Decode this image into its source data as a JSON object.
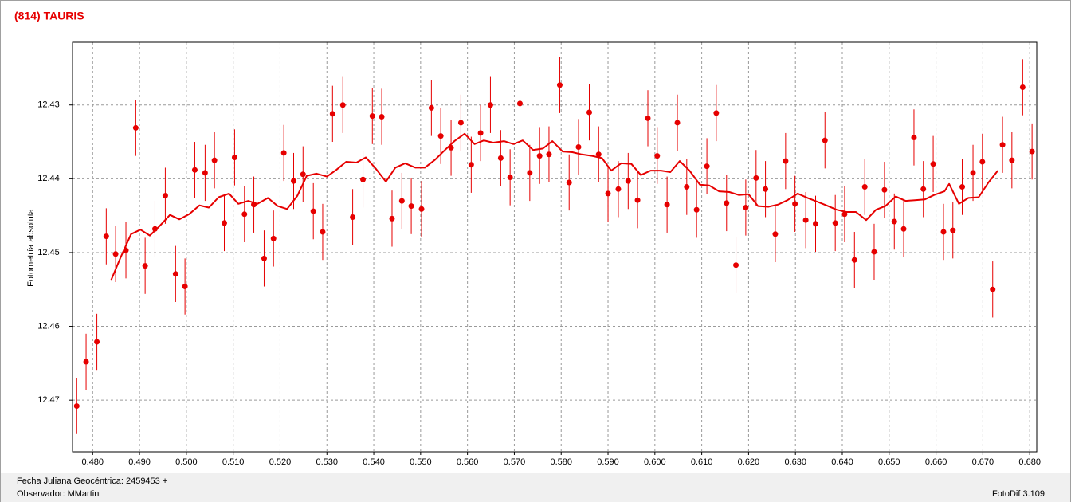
{
  "chart_data": {
    "type": "scatter",
    "title": "(814) TAURIS",
    "y_label": "Fotometría absoluta",
    "xlim": [
      0.4757,
      0.6815
    ],
    "ylim": [
      12.4215,
      12.477
    ],
    "y_inverted": true,
    "grid": true,
    "xticks": [
      {
        "value": 0.48,
        "label": "0.480"
      },
      {
        "value": 0.49,
        "label": "0.490"
      },
      {
        "value": 0.5,
        "label": "0.500"
      },
      {
        "value": 0.51,
        "label": "0.510"
      },
      {
        "value": 0.52,
        "label": "0.520"
      },
      {
        "value": 0.53,
        "label": "0.530"
      },
      {
        "value": 0.54,
        "label": "0.540"
      },
      {
        "value": 0.55,
        "label": "0.550"
      },
      {
        "value": 0.56,
        "label": "0.560"
      },
      {
        "value": 0.57,
        "label": "0.570"
      },
      {
        "value": 0.58,
        "label": "0.580"
      },
      {
        "value": 0.59,
        "label": "0.590"
      },
      {
        "value": 0.6,
        "label": "0.600"
      },
      {
        "value": 0.61,
        "label": "0.610"
      },
      {
        "value": 0.62,
        "label": "0.620"
      },
      {
        "value": 0.63,
        "label": "0.630"
      },
      {
        "value": 0.64,
        "label": "0.640"
      },
      {
        "value": 0.65,
        "label": "0.650"
      },
      {
        "value": 0.66,
        "label": "0.660"
      },
      {
        "value": 0.67,
        "label": "0.670"
      },
      {
        "value": 0.68,
        "label": "0.680"
      }
    ],
    "yticks": [
      12.43,
      12.44,
      12.45,
      12.46,
      12.47
    ],
    "series": [
      {
        "type": "errorbar",
        "color": "#e60000",
        "error": 0.0038,
        "x": [
          0.4766,
          0.4786,
          0.4809,
          0.4829,
          0.4849,
          0.4871,
          0.4892,
          0.4912,
          0.4933,
          0.4955,
          0.4977,
          0.4997,
          0.5018,
          0.504,
          0.506,
          0.5081,
          0.5103,
          0.5124,
          0.5144,
          0.5166,
          0.5186,
          0.5208,
          0.5229,
          0.5249,
          0.5271,
          0.5291,
          0.5312,
          0.5334,
          0.5355,
          0.5377,
          0.5397,
          0.5417,
          0.5439,
          0.546,
          0.548,
          0.5502,
          0.5523,
          0.5543,
          0.5565,
          0.5586,
          0.5608,
          0.5628,
          0.5649,
          0.5671,
          0.5691,
          0.5712,
          0.5733,
          0.5754,
          0.5774,
          0.5797,
          0.5817,
          0.5837,
          0.586,
          0.588,
          0.59,
          0.5922,
          0.5943,
          0.5963,
          0.5985,
          0.6005,
          0.6026,
          0.6048,
          0.6068,
          0.6089,
          0.6111,
          0.6131,
          0.6153,
          0.6173,
          0.6194,
          0.6216,
          0.6236,
          0.6257,
          0.6279,
          0.6299,
          0.6322,
          0.6343,
          0.6363,
          0.6385,
          0.6405,
          0.6426,
          0.6448,
          0.6468,
          0.649,
          0.6511,
          0.6531,
          0.6553,
          0.6573,
          0.6594,
          0.6616,
          0.6636,
          0.6656,
          0.6679,
          0.6699,
          0.6721,
          0.6742,
          0.6762,
          0.6785,
          0.6805
        ],
        "values": [
          12.4708,
          12.4648,
          12.4621,
          12.4478,
          12.4502,
          12.4497,
          12.4331,
          12.4518,
          12.4468,
          12.4423,
          12.4529,
          12.4546,
          12.4388,
          12.4392,
          12.4375,
          12.446,
          12.4371,
          12.4448,
          12.4435,
          12.4508,
          12.4481,
          12.4365,
          12.4403,
          12.4394,
          12.4444,
          12.4472,
          12.4312,
          12.43,
          12.4452,
          12.4401,
          12.4315,
          12.4316,
          12.4454,
          12.443,
          12.4437,
          12.4441,
          12.4304,
          12.4342,
          12.4358,
          12.4324,
          12.4381,
          12.4338,
          12.43,
          12.4372,
          12.4398,
          12.4298,
          12.4392,
          12.4369,
          12.4367,
          12.4273,
          12.4405,
          12.4357,
          12.431,
          12.4367,
          12.442,
          12.4414,
          12.4403,
          12.4429,
          12.4318,
          12.4369,
          12.4435,
          12.4324,
          12.4411,
          12.4442,
          12.4383,
          12.4311,
          12.4433,
          12.4517,
          12.4439,
          12.4399,
          12.4414,
          12.4475,
          12.4376,
          12.4434,
          12.4456,
          12.4461,
          12.4348,
          12.446,
          12.4448,
          12.451,
          12.4411,
          12.4499,
          12.4415,
          12.4458,
          12.4468,
          12.4344,
          12.4414,
          12.438,
          12.4472,
          12.447,
          12.4411,
          12.4392,
          12.4377,
          12.455,
          12.4354,
          12.4375,
          12.4276,
          12.4363
        ]
      },
      {
        "type": "line",
        "color": "#e60000",
        "x": [
          0.4839,
          0.486,
          0.4882,
          0.4902,
          0.4922,
          0.4943,
          0.4965,
          0.4985,
          0.5006,
          0.5028,
          0.5048,
          0.5069,
          0.5091,
          0.5111,
          0.5132,
          0.5152,
          0.5174,
          0.5195,
          0.5215,
          0.5237,
          0.5257,
          0.5278,
          0.53,
          0.532,
          0.5341,
          0.5363,
          0.5383,
          0.5404,
          0.5426,
          0.5446,
          0.5467,
          0.5489,
          0.5509,
          0.5531,
          0.5552,
          0.5572,
          0.5594,
          0.5615,
          0.5635,
          0.5655,
          0.5678,
          0.5698,
          0.5718,
          0.574,
          0.5761,
          0.5781,
          0.5803,
          0.5824,
          0.5844,
          0.5866,
          0.5887,
          0.5907,
          0.5928,
          0.595,
          0.597,
          0.5991,
          0.6013,
          0.6033,
          0.6053,
          0.6074,
          0.6096,
          0.6116,
          0.6137,
          0.6159,
          0.6179,
          0.62,
          0.622,
          0.6242,
          0.6263,
          0.6283,
          0.6305,
          0.6326,
          0.6346,
          0.6366,
          0.6388,
          0.6409,
          0.6429,
          0.6451,
          0.6472,
          0.6492,
          0.6514,
          0.6535,
          0.6555,
          0.6576,
          0.6596,
          0.6618,
          0.6628,
          0.6649,
          0.6669,
          0.6691,
          0.6712,
          0.6732
        ],
        "values": [
          12.4538,
          12.4506,
          12.4475,
          12.4469,
          12.4477,
          12.4464,
          12.4449,
          12.4455,
          12.4448,
          12.4436,
          12.4439,
          12.4425,
          12.442,
          12.4434,
          12.443,
          12.4434,
          12.4426,
          12.4437,
          12.4441,
          12.4423,
          12.4396,
          12.4393,
          12.4397,
          12.4388,
          12.4377,
          12.4378,
          12.4371,
          12.4386,
          12.4404,
          12.4385,
          12.4379,
          12.4385,
          12.4385,
          12.4374,
          12.4361,
          12.4349,
          12.4339,
          12.4353,
          12.4348,
          12.4351,
          12.4349,
          12.4353,
          12.4348,
          12.4361,
          12.4359,
          12.4349,
          12.4363,
          12.4364,
          12.4367,
          12.4369,
          12.4372,
          12.4389,
          12.4379,
          12.438,
          12.4395,
          12.4389,
          12.4389,
          12.4391,
          12.4376,
          12.4389,
          12.4408,
          12.4409,
          12.4417,
          12.4418,
          12.4422,
          12.4421,
          12.4437,
          12.4438,
          12.4435,
          12.4429,
          12.442,
          12.4426,
          12.4431,
          12.4436,
          12.4442,
          12.4445,
          12.4445,
          12.4456,
          12.4442,
          12.4437,
          12.4424,
          12.443,
          12.4429,
          12.4428,
          12.4422,
          12.4417,
          12.4407,
          12.4434,
          12.4426,
          12.4425,
          12.4405,
          12.4389
        ]
      }
    ]
  },
  "footer": {
    "date_label": "Fecha Juliana Geocéntrica: 2459453 +",
    "observer": "Observador: MMartini",
    "version": "FotoDif 3.109"
  }
}
